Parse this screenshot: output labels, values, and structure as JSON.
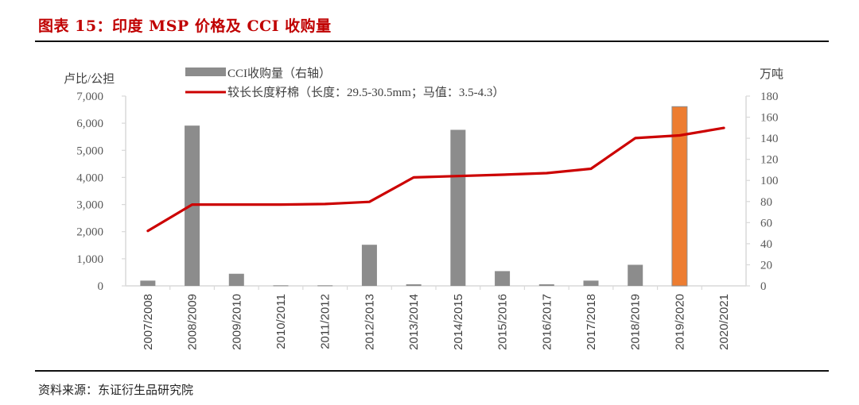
{
  "figure": {
    "title": "图表 15：印度 MSP 价格及 CCI 收购量",
    "source": "资料来源：东证衍生品研究院"
  },
  "colors": {
    "title": "#c00000",
    "bar": "#8c8c8c",
    "bar_highlight": "#ed7d31",
    "line": "#cc0000",
    "axis": "#d9d9d9",
    "tick_text": "#595959"
  },
  "chart_data": {
    "type": "bar+line",
    "title": "印度 MSP 价格及 CCI 收购量",
    "categories": [
      "2007/2008",
      "2008/2009",
      "2009/2010",
      "2010/2011",
      "2011/2012",
      "2012/2013",
      "2013/2014",
      "2014/2015",
      "2015/2016",
      "2016/2017",
      "2017/2018",
      "2018/2019",
      "2019/2020",
      "2020/2021"
    ],
    "series": [
      {
        "name": "CCI收购量（右轴）",
        "type": "bar",
        "axis": "right",
        "unit": "万吨",
        "values": [
          5,
          152,
          11.5,
          0.5,
          0.5,
          39,
          1.5,
          148,
          14,
          1.5,
          5,
          20,
          170,
          0
        ],
        "highlight_index": 12
      },
      {
        "name": "较长长度籽棉（长度：29.5-30.5mm；马值：3.5-4.3）",
        "type": "line",
        "axis": "left",
        "unit": "卢比/公担",
        "values": [
          2030,
          3000,
          3000,
          3000,
          3020,
          3100,
          4000,
          4050,
          4100,
          4160,
          4320,
          5450,
          5550,
          5825
        ]
      }
    ],
    "left_axis": {
      "label": "卢比/公担",
      "ylim": [
        0,
        7000
      ],
      "ticks": [
        "0",
        "1,000",
        "2,000",
        "3,000",
        "4,000",
        "5,000",
        "6,000",
        "7,000"
      ]
    },
    "right_axis": {
      "label": "万吨",
      "ylim": [
        0,
        180
      ],
      "ticks": [
        "0",
        "20",
        "40",
        "60",
        "80",
        "100",
        "120",
        "140",
        "160",
        "180"
      ]
    },
    "legend": [
      "CCI收购量（右轴）",
      "较长长度籽棉（长度：29.5-30.5mm；马值：3.5-4.3）"
    ],
    "legend_position": "top",
    "grid": false
  }
}
